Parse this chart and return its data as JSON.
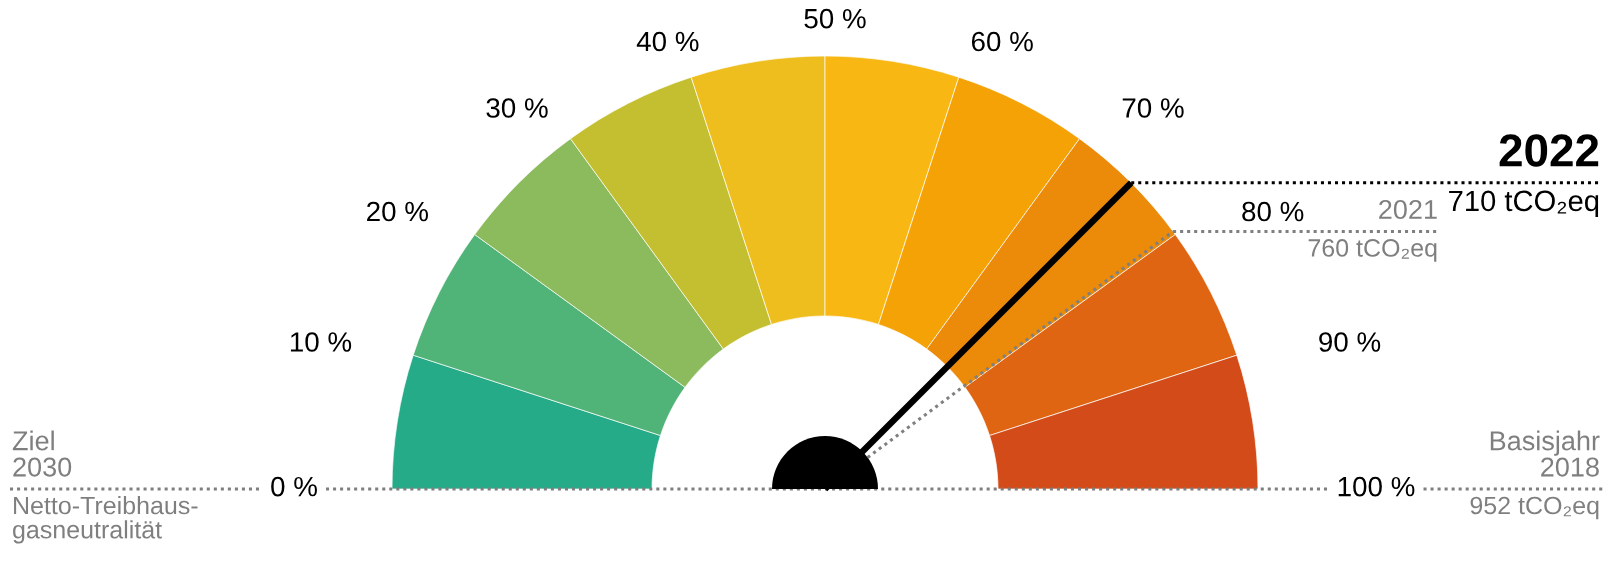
{
  "chart_data": {
    "type": "donut",
    "categories": [
      null,
      "10 %",
      "20 %",
      "30 %",
      "40 %",
      "50 %",
      "60 %",
      "70 %",
      "80 %",
      "90 %"
    ],
    "values": [
      10,
      10,
      10,
      10,
      10,
      10,
      10,
      10,
      10,
      10
    ],
    "colors": [
      "#25ab88",
      "#50b377",
      "#8cbb5d",
      "#c4bf30",
      "#eebe1f",
      "#f8b713",
      "#f4a206",
      "#ec8a0a",
      "#df6513",
      "#d24b18"
    ],
    "needle": "70 %",
    "annotations": [
      "0 %",
      "100 %",
      "Ziel\n2030\n\nNetto-Treibhaus-\ngasneutralität",
      "Basisjahr\n2018\n\n952 tCO₂eq",
      "2021\n\n760 tCO₂eq",
      "2022\n\n710 tCO₂eq"
    ]
  }
}
